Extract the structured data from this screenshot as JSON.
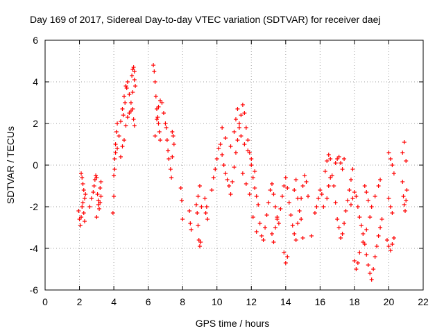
{
  "chart_data": {
    "type": "scatter",
    "title": "Day 169 of 2017, Sidereal Day-to-day VTEC variation (SDTVAR) for receiver daej",
    "xlabel": "GPS time / hours",
    "ylabel": "SDTVAR / TECUs",
    "xlim": [
      0,
      22
    ],
    "ylim": [
      -6,
      6
    ],
    "xticks": [
      "0",
      "2",
      "4",
      "6",
      "8",
      "10",
      "12",
      "14",
      "16",
      "18",
      "20",
      "22"
    ],
    "yticks": [
      "-6",
      "-4",
      "-2",
      "0",
      "2",
      "4",
      "6"
    ],
    "grid": true,
    "marker": "+",
    "color": "#ff0000",
    "series": [
      {
        "name": "SDTVAR",
        "x": [
          1.95,
          2.0,
          2.05,
          2.1,
          2.15,
          2.2,
          2.25,
          2.3,
          2.1,
          2.15,
          2.2,
          2.25,
          2.3,
          2.35,
          2.6,
          2.7,
          2.8,
          2.85,
          2.9,
          2.95,
          3.0,
          3.05,
          3.1,
          3.15,
          3.2,
          3.25,
          3.0,
          3.1,
          3.2,
          3.25,
          3.95,
          4.0,
          4.05,
          4.1,
          4.15,
          4.2,
          4.0,
          4.05,
          4.1,
          4.2,
          4.3,
          4.4,
          4.5,
          4.6,
          4.7,
          4.8,
          4.9,
          5.0,
          5.05,
          5.1,
          5.15,
          5.2,
          5.25,
          4.4,
          4.5,
          4.6,
          4.7,
          4.8,
          4.9,
          5.0,
          5.1,
          5.2,
          5.1,
          5.15,
          5.2,
          4.55,
          4.65,
          4.75,
          6.3,
          6.35,
          6.4,
          6.45,
          6.5,
          6.55,
          6.6,
          6.65,
          6.7,
          6.4,
          6.5,
          6.6,
          6.7,
          6.8,
          6.9,
          7.0,
          7.05,
          7.1,
          7.15,
          7.2,
          7.3,
          7.35,
          7.4,
          7.45,
          7.5,
          7.4,
          7.9,
          7.95,
          8.0,
          8.4,
          8.45,
          8.5,
          8.8,
          8.85,
          8.9,
          8.95,
          9.0,
          9.05,
          8.9,
          9.0,
          9.1,
          9.3,
          9.35,
          9.4,
          9.45,
          9.7,
          9.8,
          9.9,
          10.0,
          10.1,
          10.2,
          10.3,
          10.4,
          10.5,
          10.6,
          10.7,
          10.8,
          10.9,
          11.0,
          11.1,
          11.2,
          11.3,
          11.4,
          11.5,
          11.6,
          11.7,
          11.8,
          11.9,
          12.0,
          12.1,
          12.2,
          12.3,
          12.4,
          10.3,
          10.5,
          10.8,
          11.0,
          11.1,
          11.2,
          11.3,
          11.4,
          11.6,
          11.8,
          12.0,
          12.2,
          11.5,
          11.7,
          11.9,
          12.1,
          12.3,
          12.5,
          12.6,
          12.7,
          12.8,
          12.9,
          13.0,
          13.1,
          13.2,
          13.3,
          13.4,
          13.5,
          13.6,
          13.7,
          13.8,
          13.9,
          14.0,
          14.1,
          14.2,
          14.3,
          14.4,
          14.5,
          14.6,
          14.7,
          14.8,
          14.9,
          15.0,
          15.1,
          15.2,
          13.9,
          14.0,
          14.1,
          13.2,
          13.3,
          13.4,
          13.5,
          14.5,
          14.6,
          14.7,
          14.9,
          15.0,
          15.3,
          15.5,
          15.7,
          15.8,
          15.9,
          16.0,
          16.1,
          16.2,
          16.3,
          16.4,
          16.5,
          16.6,
          16.7,
          16.8,
          16.9,
          17.0,
          17.1,
          17.2,
          17.3,
          17.4,
          17.5,
          17.6,
          17.7,
          17.8,
          17.9,
          16.4,
          16.5,
          16.6,
          16.9,
          17.0,
          17.1,
          17.2,
          17.3,
          17.4,
          17.8,
          17.9,
          18.0,
          18.1,
          18.2,
          18.3,
          18.4,
          18.5,
          18.6,
          18.7,
          18.8,
          18.9,
          19.0,
          19.1,
          19.2,
          19.3,
          19.4,
          19.5,
          19.6,
          18.0,
          18.1,
          18.2,
          18.3,
          18.5,
          18.7,
          18.9,
          19.0,
          19.2,
          19.4,
          19.5,
          18.6,
          18.7,
          18.8,
          19.9,
          20.0,
          20.1,
          20.2,
          20.3,
          20.0,
          20.1,
          20.2,
          20.3,
          20.0,
          20.1,
          20.2,
          20.8,
          20.85,
          20.9,
          20.95,
          21.0,
          21.05,
          20.8,
          20.9,
          21.0
        ],
        "y": [
          -2.2,
          -2.6,
          -2.9,
          -2.5,
          -2.0,
          -1.8,
          -2.3,
          -2.7,
          -0.4,
          -0.6,
          -0.9,
          -1.2,
          -1.6,
          -1.4,
          -2.0,
          -1.6,
          -1.3,
          -1.0,
          -0.7,
          -0.5,
          -0.6,
          -1.4,
          -1.9,
          -2.1,
          -1.8,
          -1.5,
          -2.5,
          -1.7,
          -1.1,
          -0.8,
          -2.3,
          -0.5,
          0.3,
          1.0,
          1.6,
          2.0,
          -1.5,
          -0.2,
          0.6,
          0.8,
          1.4,
          2.1,
          2.7,
          3.3,
          3.8,
          4.0,
          3.4,
          2.6,
          4.3,
          4.6,
          4.7,
          4.5,
          3.8,
          0.4,
          0.9,
          1.2,
          1.9,
          2.3,
          2.5,
          3.0,
          3.5,
          4.1,
          2.7,
          2.2,
          1.9,
          2.4,
          3.0,
          3.7,
          4.8,
          4.5,
          4.0,
          3.3,
          2.7,
          2.3,
          2.0,
          1.6,
          1.2,
          1.4,
          2.2,
          2.8,
          3.1,
          3.0,
          2.5,
          2.0,
          1.8,
          1.2,
          0.7,
          0.3,
          -0.2,
          -0.6,
          1.6,
          1.4,
          1.0,
          0.4,
          -1.1,
          -1.7,
          -2.6,
          -2.2,
          -2.8,
          -3.1,
          -1.9,
          -2.3,
          -2.9,
          -3.6,
          -3.9,
          -3.7,
          -1.5,
          -1.0,
          -2.0,
          -1.6,
          -2.3,
          -2.0,
          -2.6,
          -1.2,
          -0.6,
          -0.2,
          0.3,
          0.8,
          1.0,
          0.5,
          0.0,
          -0.4,
          -0.7,
          -1.0,
          -1.4,
          -0.8,
          -0.1,
          0.6,
          1.2,
          1.8,
          2.4,
          2.9,
          2.5,
          1.8,
          1.2,
          0.6,
          0.0,
          -0.6,
          -1.1,
          -1.5,
          -1.9,
          1.8,
          1.3,
          0.9,
          1.6,
          2.2,
          2.7,
          2.0,
          1.4,
          1.0,
          0.7,
          0.3,
          -0.3,
          -0.4,
          -0.9,
          -1.4,
          -2.5,
          -3.2,
          -2.8,
          -3.4,
          -3.6,
          -3.0,
          -2.4,
          -1.8,
          -1.2,
          -0.9,
          -1.4,
          -2.0,
          -2.6,
          -2.8,
          -2.1,
          -1.5,
          -1.0,
          -0.6,
          -1.1,
          -1.8,
          -2.4,
          -2.9,
          -3.3,
          -3.6,
          -2.8,
          -2.2,
          -1.6,
          -1.0,
          -0.5,
          -0.8,
          -4.2,
          -4.7,
          -4.4,
          -3.3,
          -3.7,
          -3.0,
          -2.5,
          -1.2,
          -0.7,
          -1.6,
          -2.6,
          -3.5,
          -1.5,
          -3.4,
          -2.3,
          -2.0,
          -1.6,
          -1.2,
          -1.4,
          -2.0,
          -0.3,
          0.2,
          0.5,
          0.3,
          -0.5,
          -1.0,
          -1.8,
          -2.6,
          -3.0,
          -3.5,
          -3.3,
          -2.8,
          -2.2,
          -1.7,
          -1.2,
          -0.7,
          -0.2,
          -1.6,
          -1.0,
          -0.6,
          0.1,
          0.3,
          0.4,
          0.1,
          -0.2,
          0.3,
          -1.9,
          -1.6,
          -1.3,
          -1.5,
          -2.0,
          -2.5,
          -2.9,
          -3.3,
          -3.8,
          -4.3,
          -4.8,
          -5.2,
          -5.5,
          -5.0,
          -4.4,
          -3.9,
          -3.4,
          -3.0,
          -2.6,
          -4.6,
          -5.0,
          -4.7,
          -4.2,
          -3.7,
          -3.1,
          -2.5,
          -2.0,
          -1.5,
          -1.0,
          -0.7,
          -1.0,
          -1.3,
          -1.7,
          -3.6,
          -3.9,
          -4.1,
          -3.8,
          -3.5,
          0.6,
          0.3,
          0.0,
          -0.4,
          -1.6,
          -2.0,
          -2.3,
          -0.8,
          -1.5,
          -1.9,
          -2.2,
          -1.7,
          -1.2,
          0.6,
          1.1,
          0.2
        ]
      }
    ]
  }
}
